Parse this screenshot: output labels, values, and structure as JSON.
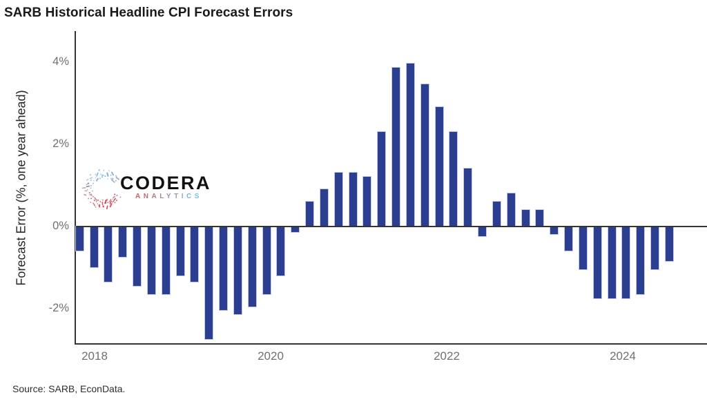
{
  "title": "SARB Historical Headline CPI Forecast Errors",
  "y_axis_title": "Forecast Error (%, one year ahead)",
  "source": "Source: SARB, EconData.",
  "logo": {
    "name": "CODERA",
    "subtitle": "ANALYTICS",
    "mark": "dotted-ring-icon",
    "name_color": "#111111",
    "subtitle_color_start": "#c4606c",
    "subtitle_color_end": "#72c2e5",
    "mark_color_red": "#c9404f",
    "mark_color_blue": "#6fb6de"
  },
  "colors": {
    "bar": "#2b3e90",
    "bar_edge": "#c3cae4",
    "axis": "#333333",
    "zero_line": "#333333",
    "tick_label": "#6f6f6f",
    "background": "#ffffff"
  },
  "chart_data": {
    "type": "bar",
    "title": "SARB Historical Headline CPI Forecast Errors",
    "xlabel": "",
    "ylabel": "Forecast Error (%, one year ahead)",
    "unit": "percent",
    "frequency": "bimonthly (SARB MPC meetings)",
    "x": [
      "2017-11",
      "2018-01",
      "2018-03",
      "2018-05",
      "2018-07",
      "2018-09",
      "2018-11",
      "2019-01",
      "2019-03",
      "2019-05",
      "2019-07",
      "2019-09",
      "2019-11",
      "2020-01",
      "2020-03",
      "2020-05",
      "2020-07",
      "2020-09",
      "2020-11",
      "2021-01",
      "2021-03",
      "2021-05",
      "2021-07",
      "2021-09",
      "2021-11",
      "2022-01",
      "2022-03",
      "2022-05",
      "2022-07",
      "2022-09",
      "2022-11",
      "2023-01",
      "2023-03",
      "2023-05",
      "2023-07",
      "2023-09",
      "2023-11",
      "2024-01",
      "2024-03",
      "2024-05",
      "2024-07",
      "2024-09"
    ],
    "values": [
      -0.6,
      -1.0,
      -1.35,
      -0.75,
      -1.45,
      -1.65,
      -1.65,
      -1.2,
      -1.35,
      -2.75,
      -2.05,
      -2.15,
      -1.95,
      -1.65,
      -1.2,
      -0.15,
      0.6,
      0.9,
      1.3,
      1.3,
      1.2,
      2.3,
      3.85,
      3.95,
      3.45,
      2.9,
      2.3,
      1.4,
      -0.25,
      0.6,
      0.8,
      0.4,
      0.4,
      -0.2,
      -0.6,
      -1.05,
      -1.75,
      -1.75,
      -1.75,
      -1.65,
      -1.05,
      -0.85
    ],
    "y_ticks": [
      {
        "label": "4%",
        "value": 4
      },
      {
        "label": "2%",
        "value": 2
      },
      {
        "label": "0%",
        "value": 0
      },
      {
        "label": "-2%",
        "value": -2
      }
    ],
    "x_ticks": [
      {
        "label": "2018",
        "year": 2018
      },
      {
        "label": "2020",
        "year": 2020
      },
      {
        "label": "2022",
        "year": 2022
      },
      {
        "label": "2024",
        "year": 2024
      }
    ],
    "ylim": [
      -2.9,
      4.8
    ],
    "grid": false,
    "legend": "none"
  }
}
